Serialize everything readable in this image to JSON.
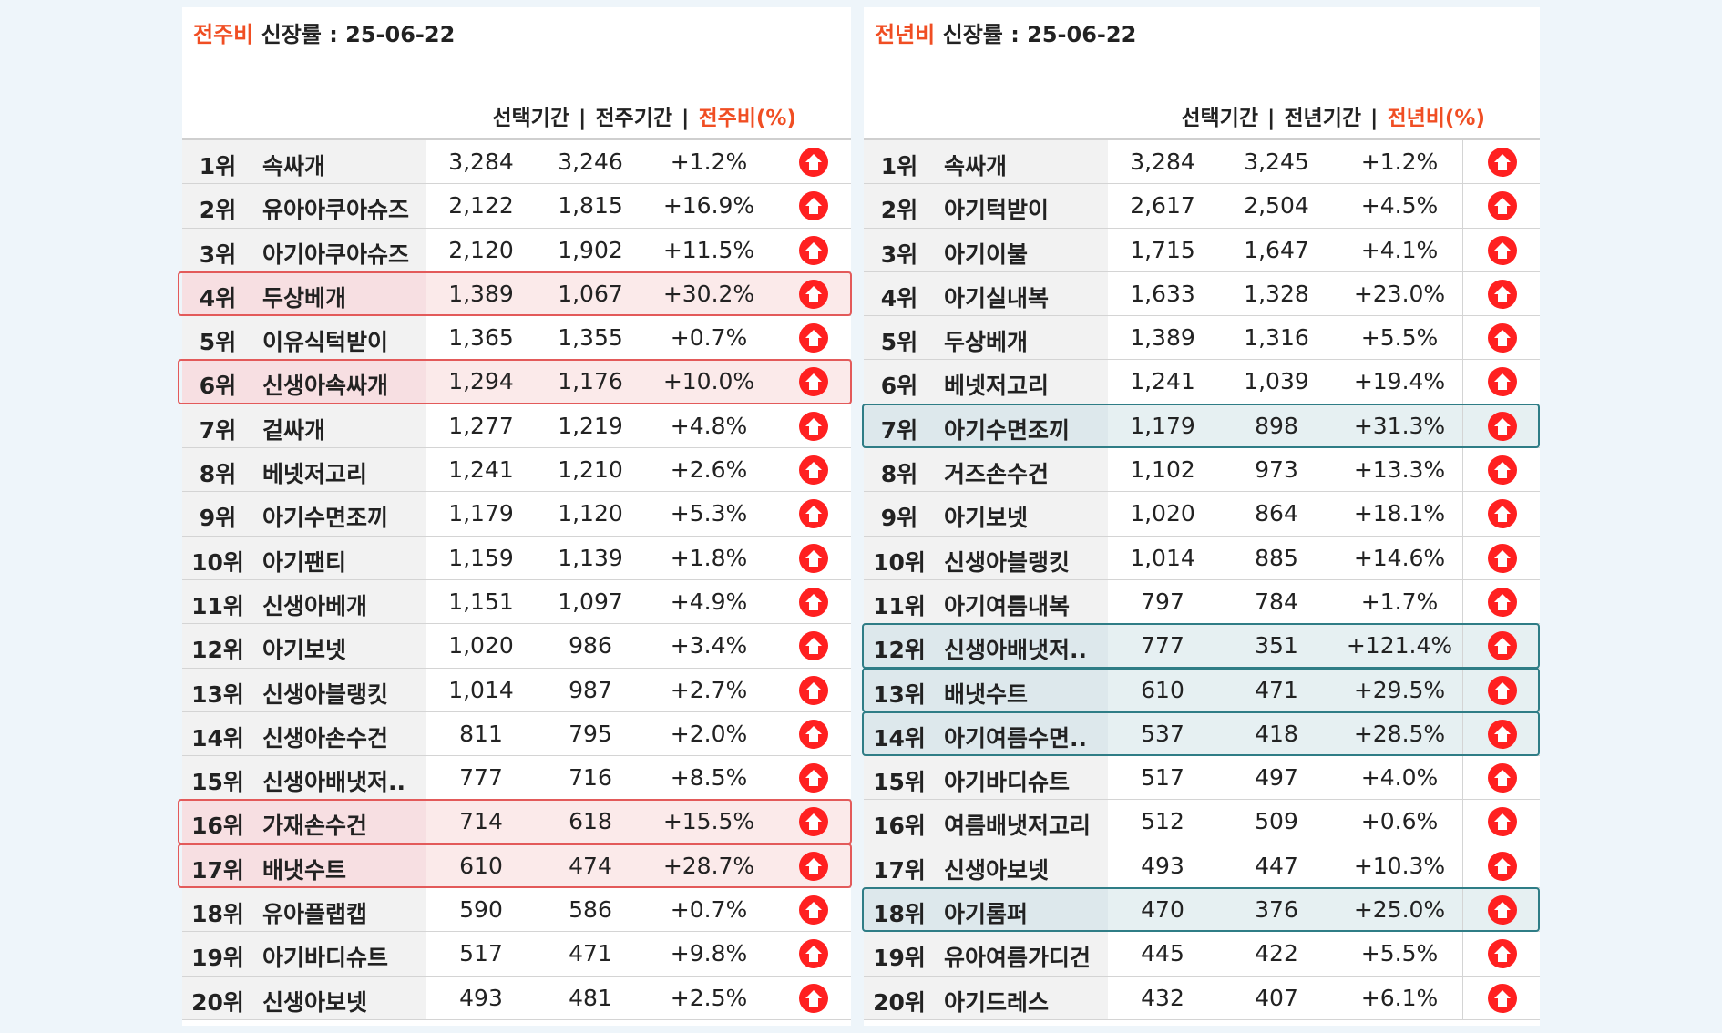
{
  "colors": {
    "accent": "#f04e23",
    "arrow": "#ff2020",
    "highlight_red": "#e35a5a",
    "highlight_teal": "#2f7d86"
  },
  "left": {
    "title_accent": "전주비",
    "title_rest": "신장률 : 25-06-22",
    "headers": {
      "col1": "선택기간",
      "col2": "전주기간",
      "col3": "전주비(%)",
      "sep": "|"
    },
    "arrow_icon": "up-arrow-circle-icon",
    "rows": [
      {
        "rank": "1위",
        "keyword": "속싸개",
        "selected": "3,284",
        "prev": "3,246",
        "change": "+1.2%",
        "hl": ""
      },
      {
        "rank": "2위",
        "keyword": "유아아쿠아슈즈",
        "selected": "2,122",
        "prev": "1,815",
        "change": "+16.9%",
        "hl": ""
      },
      {
        "rank": "3위",
        "keyword": "아기아쿠아슈즈",
        "selected": "2,120",
        "prev": "1,902",
        "change": "+11.5%",
        "hl": ""
      },
      {
        "rank": "4위",
        "keyword": "두상베개",
        "selected": "1,389",
        "prev": "1,067",
        "change": "+30.2%",
        "hl": "red"
      },
      {
        "rank": "5위",
        "keyword": "이유식턱받이",
        "selected": "1,365",
        "prev": "1,355",
        "change": "+0.7%",
        "hl": ""
      },
      {
        "rank": "6위",
        "keyword": "신생아속싸개",
        "selected": "1,294",
        "prev": "1,176",
        "change": "+10.0%",
        "hl": "red"
      },
      {
        "rank": "7위",
        "keyword": "겉싸개",
        "selected": "1,277",
        "prev": "1,219",
        "change": "+4.8%",
        "hl": ""
      },
      {
        "rank": "8위",
        "keyword": "베넷저고리",
        "selected": "1,241",
        "prev": "1,210",
        "change": "+2.6%",
        "hl": ""
      },
      {
        "rank": "9위",
        "keyword": "아기수면조끼",
        "selected": "1,179",
        "prev": "1,120",
        "change": "+5.3%",
        "hl": ""
      },
      {
        "rank": "10위",
        "keyword": "아기팬티",
        "selected": "1,159",
        "prev": "1,139",
        "change": "+1.8%",
        "hl": ""
      },
      {
        "rank": "11위",
        "keyword": "신생아베개",
        "selected": "1,151",
        "prev": "1,097",
        "change": "+4.9%",
        "hl": ""
      },
      {
        "rank": "12위",
        "keyword": "아기보넷",
        "selected": "1,020",
        "prev": "986",
        "change": "+3.4%",
        "hl": ""
      },
      {
        "rank": "13위",
        "keyword": "신생아블랭킷",
        "selected": "1,014",
        "prev": "987",
        "change": "+2.7%",
        "hl": ""
      },
      {
        "rank": "14위",
        "keyword": "신생아손수건",
        "selected": "811",
        "prev": "795",
        "change": "+2.0%",
        "hl": ""
      },
      {
        "rank": "15위",
        "keyword": "신생아배냇저..",
        "selected": "777",
        "prev": "716",
        "change": "+8.5%",
        "hl": ""
      },
      {
        "rank": "16위",
        "keyword": "가재손수건",
        "selected": "714",
        "prev": "618",
        "change": "+15.5%",
        "hl": "red"
      },
      {
        "rank": "17위",
        "keyword": "배냇수트",
        "selected": "610",
        "prev": "474",
        "change": "+28.7%",
        "hl": "red"
      },
      {
        "rank": "18위",
        "keyword": "유아플랩캡",
        "selected": "590",
        "prev": "586",
        "change": "+0.7%",
        "hl": ""
      },
      {
        "rank": "19위",
        "keyword": "아기바디슈트",
        "selected": "517",
        "prev": "471",
        "change": "+9.8%",
        "hl": ""
      },
      {
        "rank": "20위",
        "keyword": "신생아보넷",
        "selected": "493",
        "prev": "481",
        "change": "+2.5%",
        "hl": ""
      }
    ]
  },
  "right": {
    "title_accent": "전년비",
    "title_rest": "신장률 : 25-06-22",
    "headers": {
      "col1": "선택기간",
      "col2": "전년기간",
      "col3": "전년비(%)",
      "sep": "|"
    },
    "arrow_icon": "up-arrow-circle-icon",
    "rows": [
      {
        "rank": "1위",
        "keyword": "속싸개",
        "selected": "3,284",
        "prev": "3,245",
        "change": "+1.2%",
        "hl": ""
      },
      {
        "rank": "2위",
        "keyword": "아기턱받이",
        "selected": "2,617",
        "prev": "2,504",
        "change": "+4.5%",
        "hl": ""
      },
      {
        "rank": "3위",
        "keyword": "아기이불",
        "selected": "1,715",
        "prev": "1,647",
        "change": "+4.1%",
        "hl": ""
      },
      {
        "rank": "4위",
        "keyword": "아기실내복",
        "selected": "1,633",
        "prev": "1,328",
        "change": "+23.0%",
        "hl": ""
      },
      {
        "rank": "5위",
        "keyword": "두상베개",
        "selected": "1,389",
        "prev": "1,316",
        "change": "+5.5%",
        "hl": ""
      },
      {
        "rank": "6위",
        "keyword": "베넷저고리",
        "selected": "1,241",
        "prev": "1,039",
        "change": "+19.4%",
        "hl": ""
      },
      {
        "rank": "7위",
        "keyword": "아기수면조끼",
        "selected": "1,179",
        "prev": "898",
        "change": "+31.3%",
        "hl": "teal"
      },
      {
        "rank": "8위",
        "keyword": "거즈손수건",
        "selected": "1,102",
        "prev": "973",
        "change": "+13.3%",
        "hl": ""
      },
      {
        "rank": "9위",
        "keyword": "아기보넷",
        "selected": "1,020",
        "prev": "864",
        "change": "+18.1%",
        "hl": ""
      },
      {
        "rank": "10위",
        "keyword": "신생아블랭킷",
        "selected": "1,014",
        "prev": "885",
        "change": "+14.6%",
        "hl": ""
      },
      {
        "rank": "11위",
        "keyword": "아기여름내복",
        "selected": "797",
        "prev": "784",
        "change": "+1.7%",
        "hl": ""
      },
      {
        "rank": "12위",
        "keyword": "신생아배냇저..",
        "selected": "777",
        "prev": "351",
        "change": "+121.4%",
        "hl": "teal"
      },
      {
        "rank": "13위",
        "keyword": "배냇수트",
        "selected": "610",
        "prev": "471",
        "change": "+29.5%",
        "hl": "teal"
      },
      {
        "rank": "14위",
        "keyword": "아기여름수면..",
        "selected": "537",
        "prev": "418",
        "change": "+28.5%",
        "hl": "teal"
      },
      {
        "rank": "15위",
        "keyword": "아기바디슈트",
        "selected": "517",
        "prev": "497",
        "change": "+4.0%",
        "hl": ""
      },
      {
        "rank": "16위",
        "keyword": "여름배냇저고리",
        "selected": "512",
        "prev": "509",
        "change": "+0.6%",
        "hl": ""
      },
      {
        "rank": "17위",
        "keyword": "신생아보넷",
        "selected": "493",
        "prev": "447",
        "change": "+10.3%",
        "hl": ""
      },
      {
        "rank": "18위",
        "keyword": "아기롬퍼",
        "selected": "470",
        "prev": "376",
        "change": "+25.0%",
        "hl": "teal"
      },
      {
        "rank": "19위",
        "keyword": "유아여름가디건",
        "selected": "445",
        "prev": "422",
        "change": "+5.5%",
        "hl": ""
      },
      {
        "rank": "20위",
        "keyword": "아기드레스",
        "selected": "432",
        "prev": "407",
        "change": "+6.1%",
        "hl": ""
      }
    ]
  }
}
